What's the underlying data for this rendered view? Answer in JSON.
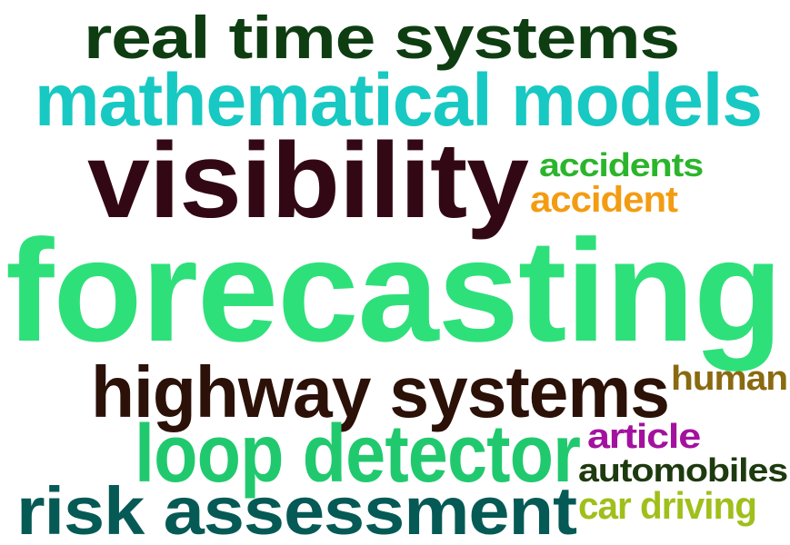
{
  "words": [
    {
      "text": "real time systems",
      "color": "#0f3d12"
    },
    {
      "text": "mathematical models",
      "color": "#17c9c2"
    },
    {
      "text": "visibility",
      "color": "#330815"
    },
    {
      "text": "accidents",
      "color": "#2bb52c"
    },
    {
      "text": "accident",
      "color": "#f39c12"
    },
    {
      "text": "forecasting",
      "color": "#2ee07a"
    },
    {
      "text": "highway systems",
      "color": "#2b1108"
    },
    {
      "text": "human",
      "color": "#8a6a10"
    },
    {
      "text": "loop detector",
      "color": "#21c96e"
    },
    {
      "text": "article",
      "color": "#a3119e"
    },
    {
      "text": "automobiles",
      "color": "#1e3a0f"
    },
    {
      "text": "risk assessment",
      "color": "#065a55"
    },
    {
      "text": "car driving",
      "color": "#9fbf1a"
    }
  ]
}
